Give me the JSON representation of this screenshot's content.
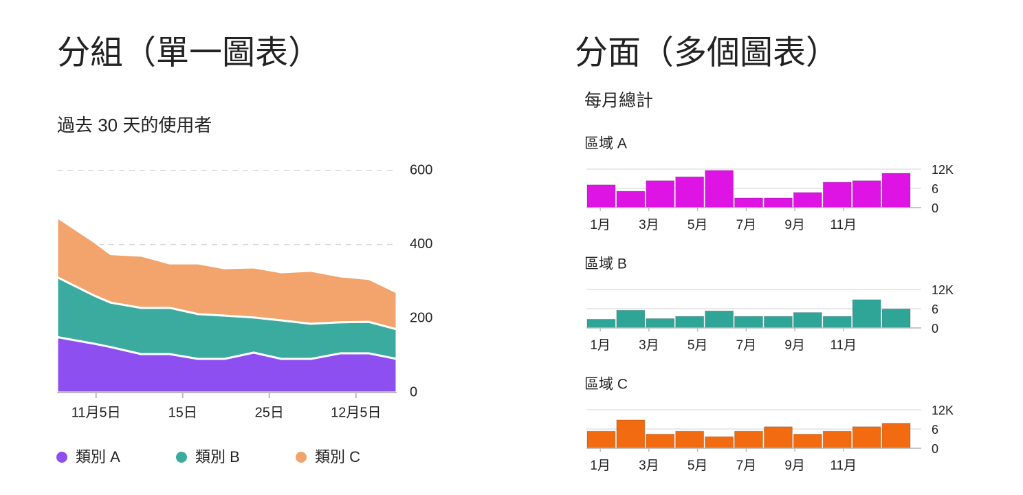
{
  "headings": [
    "分組（單一圖表）",
    "分面（多個圖表）"
  ],
  "facet_title": "每月總計",
  "chart_data": [
    {
      "type": "stacked-area",
      "title": "過去 30 天的使用者",
      "x": [
        0.5,
        4.8,
        6.7,
        10.2,
        13.5,
        16.8,
        19.8,
        23.2,
        26.4,
        29.8,
        33.2,
        36.5,
        39.7
      ],
      "xlim": [
        0.5,
        39.7
      ],
      "xticks": [
        {
          "value": 5,
          "label": "11月5日"
        },
        {
          "value": 15,
          "label": "15日"
        },
        {
          "value": 25,
          "label": "25日"
        },
        {
          "value": 35,
          "label": "12月5日"
        }
      ],
      "ylim": [
        0,
        600
      ],
      "yticks": [
        0,
        200,
        400,
        600
      ],
      "grid": true,
      "legend": "bottom",
      "series": [
        {
          "name": "類別 A",
          "color": "#8e4ff0",
          "values": [
            150,
            132,
            123,
            104,
            104,
            91,
            91,
            108,
            91,
            91,
            106,
            106,
            91
          ]
        },
        {
          "name": "類別 B",
          "color": "#3aab9e",
          "values": [
            162,
            130,
            120,
            125,
            125,
            121,
            117,
            95,
            104,
            95,
            84,
            85,
            80
          ]
        },
        {
          "name": "類別 C",
          "color": "#f3a36c",
          "values": [
            162,
            145,
            131,
            141,
            120,
            137,
            128,
            135,
            130,
            143,
            124,
            116,
            100
          ]
        }
      ]
    },
    {
      "type": "bar",
      "title": "區域 A",
      "color": "#dd14e3",
      "values": [
        7100,
        5100,
        8400,
        9600,
        11600,
        3000,
        3000,
        4700,
        7900,
        8400,
        10700
      ],
      "xlim": [
        0.43,
        14.2
      ],
      "xticks": [
        {
          "value": 1,
          "label": "1月"
        },
        {
          "value": 3,
          "label": "3月"
        },
        {
          "value": 5,
          "label": "5月"
        },
        {
          "value": 7,
          "label": "7月"
        },
        {
          "value": 9,
          "label": "9月"
        },
        {
          "value": 11,
          "label": "11月"
        }
      ],
      "ylim": [
        0,
        12000
      ],
      "yticks": [
        0,
        {
          "value": 6000,
          "label": "6"
        },
        {
          "value": 12000,
          "label": "12K"
        }
      ],
      "grid": true
    },
    {
      "type": "bar",
      "title": "區域 B",
      "color": "#2ea597",
      "values": [
        2700,
        5500,
        2900,
        3600,
        5300,
        3600,
        3600,
        4800,
        3600,
        8800,
        5900
      ],
      "xlim": [
        0.43,
        14.2
      ],
      "xticks": [
        {
          "value": 1,
          "label": "1月"
        },
        {
          "value": 3,
          "label": "3月"
        },
        {
          "value": 5,
          "label": "5月"
        },
        {
          "value": 7,
          "label": "7月"
        },
        {
          "value": 9,
          "label": "9月"
        },
        {
          "value": 11,
          "label": "11月"
        }
      ],
      "ylim": [
        0,
        12000
      ],
      "yticks": [
        0,
        {
          "value": 6000,
          "label": "6"
        },
        {
          "value": 12000,
          "label": "12K"
        }
      ],
      "grid": true
    },
    {
      "type": "bar",
      "title": "區域 C",
      "color": "#f26b10",
      "values": [
        5300,
        8800,
        4400,
        5300,
        3600,
        5300,
        6700,
        4400,
        5300,
        6700,
        7800
      ],
      "xlim": [
        0.43,
        14.2
      ],
      "xticks": [
        {
          "value": 1,
          "label": "1月"
        },
        {
          "value": 3,
          "label": "3月"
        },
        {
          "value": 5,
          "label": "5月"
        },
        {
          "value": 7,
          "label": "7月"
        },
        {
          "value": 9,
          "label": "9月"
        },
        {
          "value": 11,
          "label": "11月"
        }
      ],
      "ylim": [
        0,
        12000
      ],
      "yticks": [
        0,
        {
          "value": 6000,
          "label": "6"
        },
        {
          "value": 12000,
          "label": "12K"
        }
      ],
      "grid": true
    }
  ]
}
